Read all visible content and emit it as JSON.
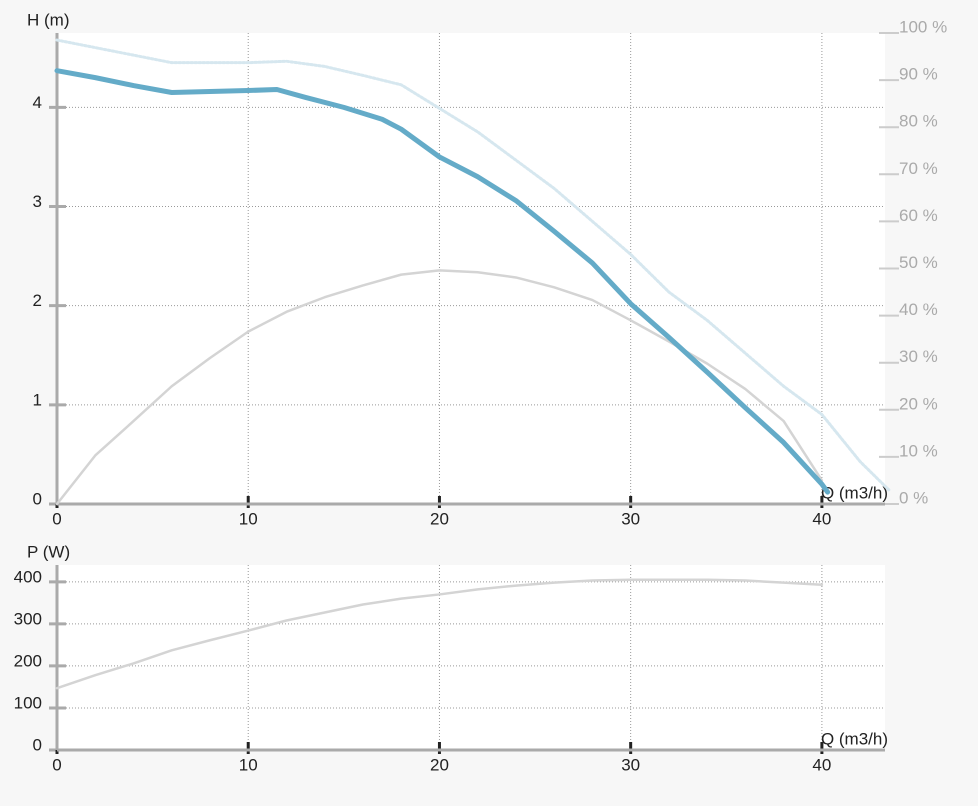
{
  "chart_data": [
    {
      "type": "line",
      "ylabel": "H (m)",
      "xlabel": "Q (m3/h)",
      "xlim": [
        0,
        43.3
      ],
      "ylim": [
        0,
        4.75
      ],
      "y2lim": [
        0,
        100
      ],
      "xticks": [
        0,
        10,
        20,
        30,
        40
      ],
      "yticks": [
        0,
        1,
        2,
        3,
        4
      ],
      "y2ticks": [
        {
          "value": 0,
          "label": "0 %"
        },
        {
          "value": 10,
          "label": "10 %"
        },
        {
          "value": 20,
          "label": "20 %"
        },
        {
          "value": 30,
          "label": "30 %"
        },
        {
          "value": 40,
          "label": "40 %"
        },
        {
          "value": 50,
          "label": "50 %"
        },
        {
          "value": 60,
          "label": "60 %"
        },
        {
          "value": 70,
          "label": "70 %"
        },
        {
          "value": 80,
          "label": "80 %"
        },
        {
          "value": 90,
          "label": "90 %"
        },
        {
          "value": 100,
          "label": "100 %"
        }
      ],
      "grid": true,
      "series": [
        {
          "color": "#d6e7ef",
          "style": "dotted",
          "axis": "y2",
          "x": [
            0,
            6,
            10,
            12,
            14,
            16,
            18,
            20,
            22,
            24,
            26,
            28,
            30,
            32,
            34,
            36,
            38,
            40,
            42,
            43.5
          ],
          "values": [
            98.5,
            93.7,
            93.7,
            94,
            92.9,
            91,
            89,
            84,
            79,
            73,
            67,
            60,
            53,
            45,
            39,
            32,
            25,
            19,
            9,
            3
          ]
        },
        {
          "color": "#d4d4d4",
          "style": "thin",
          "axis": "y2",
          "x": [
            0,
            2,
            4,
            6,
            8,
            10,
            12,
            14,
            16,
            18,
            20,
            22,
            24,
            26,
            28,
            30,
            32,
            34,
            36,
            38,
            40
          ],
          "values": [
            0,
            10.3,
            17.6,
            25,
            31,
            36.6,
            40.8,
            43.9,
            46.4,
            48.7,
            49.6,
            49.2,
            48.1,
            46,
            43.3,
            39,
            34.5,
            29.8,
            24.4,
            17.6,
            5
          ]
        },
        {
          "color": "#64abc8",
          "style": "thick",
          "x": [
            0,
            2,
            4,
            6,
            8,
            10,
            11.5,
            13,
            15,
            17,
            18,
            20,
            22,
            24,
            26,
            28,
            30,
            32,
            34,
            36,
            38,
            40,
            40.3
          ],
          "values": [
            4.37,
            4.3,
            4.22,
            4.15,
            4.16,
            4.17,
            4.18,
            4.1,
            4.0,
            3.88,
            3.78,
            3.5,
            3.3,
            3.06,
            2.75,
            2.43,
            2.02,
            1.68,
            1.33,
            0.97,
            0.62,
            0.2,
            0.12
          ]
        }
      ]
    },
    {
      "type": "line",
      "ylabel": "P (W)",
      "xlabel": "Q (m3/h)",
      "xlim": [
        0,
        43.3
      ],
      "ylim": [
        0,
        440
      ],
      "xticks": [
        0,
        10,
        20,
        30,
        40
      ],
      "yticks": [
        0,
        100,
        200,
        300,
        400
      ],
      "grid": true,
      "series": [
        {
          "color": "#d4d4d4",
          "style": "thin",
          "x": [
            0,
            2,
            4,
            6,
            8,
            10,
            12,
            14,
            16,
            18,
            20,
            22,
            24,
            26,
            28,
            30,
            32,
            34,
            36,
            38,
            40
          ],
          "values": [
            147,
            178,
            206,
            237,
            261,
            284,
            308,
            327,
            346,
            360,
            370,
            382,
            391,
            398,
            403,
            405,
            405,
            405,
            403,
            398,
            393
          ]
        }
      ]
    }
  ]
}
